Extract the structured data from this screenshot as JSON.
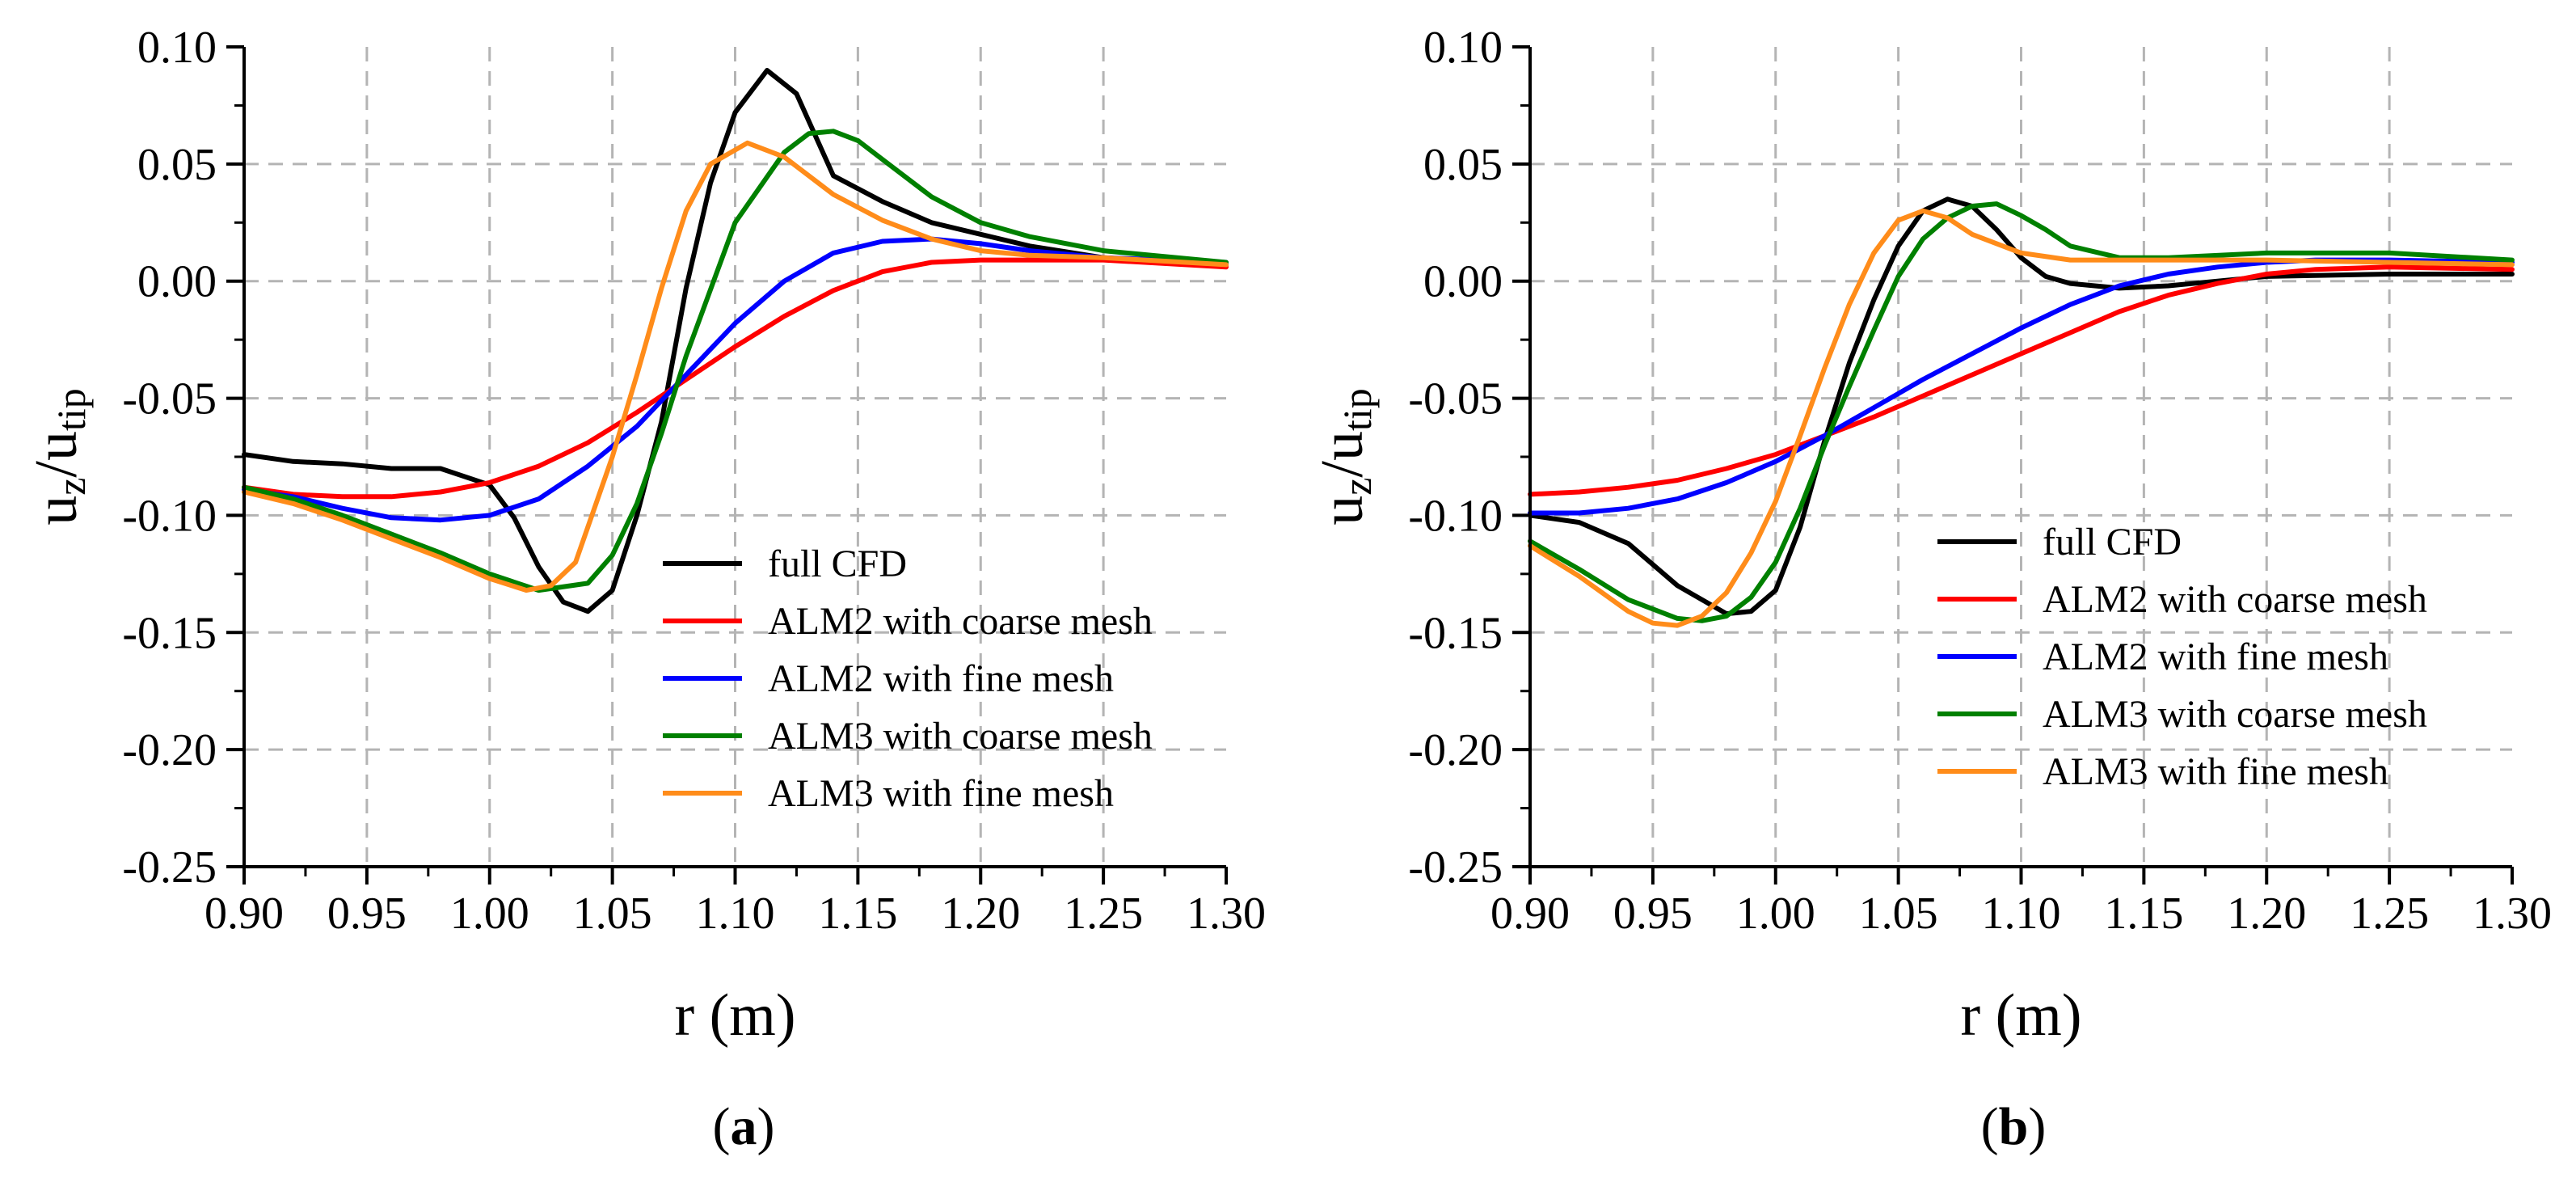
{
  "figure": {
    "panels": [
      {
        "label_open": "(",
        "label_letter": "a",
        "label_close": ")"
      },
      {
        "label_open": "(",
        "label_letter": "b",
        "label_close": ")"
      }
    ]
  },
  "chart_data": [
    {
      "type": "line",
      "xlabel": "r (m)",
      "ylabel_main": "u",
      "ylabel_sub1": "z",
      "ylabel_slash": "/u",
      "ylabel_sub2": "tip",
      "xlim": [
        0.9,
        1.3
      ],
      "ylim": [
        -0.25,
        0.1
      ],
      "xticks": [
        "0.90",
        "0.95",
        "1.00",
        "1.05",
        "1.10",
        "1.15",
        "1.20",
        "1.25",
        "1.30"
      ],
      "yticks": [
        "0.10",
        "0.05",
        "0.00",
        "-0.05",
        "-0.10",
        "-0.15",
        "-0.20",
        "-0.25"
      ],
      "grid": true,
      "legend_position": "lower-right",
      "series": [
        {
          "name": "full CFD",
          "color": "#000000",
          "x": [
            0.9,
            0.92,
            0.94,
            0.96,
            0.98,
            1.0,
            1.01,
            1.02,
            1.03,
            1.04,
            1.05,
            1.06,
            1.07,
            1.08,
            1.09,
            1.1,
            1.113,
            1.125,
            1.14,
            1.16,
            1.18,
            1.2,
            1.22,
            1.25,
            1.3
          ],
          "y": [
            -0.074,
            -0.077,
            -0.078,
            -0.08,
            -0.08,
            -0.087,
            -0.101,
            -0.122,
            -0.137,
            -0.141,
            -0.132,
            -0.1,
            -0.06,
            -0.003,
            0.042,
            0.072,
            0.09,
            0.08,
            0.045,
            0.034,
            0.025,
            0.02,
            0.015,
            0.01,
            0.007
          ]
        },
        {
          "name": "ALM2 with coarse mesh",
          "color": "#ff0000",
          "x": [
            0.9,
            0.92,
            0.94,
            0.96,
            0.98,
            1.0,
            1.02,
            1.04,
            1.06,
            1.08,
            1.1,
            1.12,
            1.14,
            1.16,
            1.18,
            1.2,
            1.22,
            1.25,
            1.3
          ],
          "y": [
            -0.088,
            -0.091,
            -0.092,
            -0.092,
            -0.09,
            -0.086,
            -0.079,
            -0.069,
            -0.056,
            -0.042,
            -0.028,
            -0.015,
            -0.004,
            0.004,
            0.008,
            0.009,
            0.009,
            0.009,
            0.006
          ]
        },
        {
          "name": "ALM2 with fine mesh",
          "color": "#0000ff",
          "x": [
            0.9,
            0.92,
            0.94,
            0.96,
            0.98,
            1.0,
            1.02,
            1.04,
            1.06,
            1.08,
            1.1,
            1.12,
            1.14,
            1.16,
            1.18,
            1.2,
            1.22,
            1.25,
            1.3
          ],
          "y": [
            -0.089,
            -0.092,
            -0.097,
            -0.101,
            -0.102,
            -0.1,
            -0.093,
            -0.079,
            -0.062,
            -0.04,
            -0.018,
            0.0,
            0.012,
            0.017,
            0.018,
            0.016,
            0.013,
            0.01,
            0.008
          ]
        },
        {
          "name": "ALM3 with coarse mesh",
          "color": "#008000",
          "x": [
            0.9,
            0.92,
            0.94,
            0.96,
            0.98,
            1.0,
            1.02,
            1.04,
            1.05,
            1.06,
            1.07,
            1.08,
            1.1,
            1.12,
            1.13,
            1.14,
            1.15,
            1.16,
            1.18,
            1.2,
            1.22,
            1.25,
            1.3
          ],
          "y": [
            -0.088,
            -0.093,
            -0.1,
            -0.108,
            -0.116,
            -0.125,
            -0.132,
            -0.129,
            -0.117,
            -0.095,
            -0.065,
            -0.032,
            0.025,
            0.055,
            0.063,
            0.064,
            0.06,
            0.052,
            0.036,
            0.025,
            0.019,
            0.013,
            0.008
          ]
        },
        {
          "name": "ALM3 with fine mesh",
          "color": "#ff8c1a",
          "x": [
            0.9,
            0.92,
            0.94,
            0.96,
            0.98,
            1.0,
            1.015,
            1.025,
            1.035,
            1.05,
            1.06,
            1.07,
            1.08,
            1.09,
            1.105,
            1.12,
            1.14,
            1.16,
            1.18,
            1.2,
            1.22,
            1.25,
            1.3
          ],
          "y": [
            -0.09,
            -0.095,
            -0.102,
            -0.11,
            -0.118,
            -0.127,
            -0.132,
            -0.13,
            -0.12,
            -0.075,
            -0.04,
            -0.003,
            0.03,
            0.05,
            0.059,
            0.053,
            0.037,
            0.026,
            0.018,
            0.013,
            0.011,
            0.01,
            0.007
          ]
        }
      ]
    },
    {
      "type": "line",
      "xlabel": "r (m)",
      "ylabel_main": "u",
      "ylabel_sub1": "z",
      "ylabel_slash": "/u",
      "ylabel_sub2": "tip",
      "xlim": [
        0.9,
        1.3
      ],
      "ylim": [
        -0.25,
        0.1
      ],
      "xticks": [
        "0.90",
        "0.95",
        "1.00",
        "1.05",
        "1.10",
        "1.15",
        "1.20",
        "1.25",
        "1.30"
      ],
      "yticks": [
        "0.10",
        "0.05",
        "0.00",
        "-0.05",
        "-0.10",
        "-0.15",
        "-0.20",
        "-0.25"
      ],
      "grid": true,
      "legend_position": "lower-right",
      "series": [
        {
          "name": "full CFD",
          "color": "#000000",
          "x": [
            0.9,
            0.92,
            0.94,
            0.96,
            0.98,
            0.99,
            1.0,
            1.01,
            1.02,
            1.03,
            1.04,
            1.05,
            1.06,
            1.07,
            1.08,
            1.09,
            1.1,
            1.11,
            1.12,
            1.14,
            1.16,
            1.18,
            1.2,
            1.25,
            1.3
          ],
          "y": [
            -0.1,
            -0.103,
            -0.112,
            -0.13,
            -0.142,
            -0.141,
            -0.132,
            -0.105,
            -0.068,
            -0.035,
            -0.008,
            0.015,
            0.03,
            0.035,
            0.032,
            0.022,
            0.01,
            0.002,
            -0.001,
            -0.003,
            -0.002,
            0.0,
            0.002,
            0.003,
            0.003
          ]
        },
        {
          "name": "ALM2 with coarse mesh",
          "color": "#ff0000",
          "x": [
            0.9,
            0.92,
            0.94,
            0.96,
            0.98,
            1.0,
            1.02,
            1.04,
            1.06,
            1.08,
            1.1,
            1.12,
            1.14,
            1.16,
            1.18,
            1.2,
            1.22,
            1.25,
            1.3
          ],
          "y": [
            -0.091,
            -0.09,
            -0.088,
            -0.085,
            -0.08,
            -0.074,
            -0.066,
            -0.058,
            -0.049,
            -0.04,
            -0.031,
            -0.022,
            -0.013,
            -0.006,
            -0.001,
            0.003,
            0.005,
            0.006,
            0.005
          ]
        },
        {
          "name": "ALM2 with fine mesh",
          "color": "#0000ff",
          "x": [
            0.9,
            0.92,
            0.94,
            0.96,
            0.98,
            1.0,
            1.02,
            1.04,
            1.06,
            1.08,
            1.1,
            1.12,
            1.14,
            1.16,
            1.18,
            1.2,
            1.22,
            1.25,
            1.3
          ],
          "y": [
            -0.099,
            -0.099,
            -0.097,
            -0.093,
            -0.086,
            -0.077,
            -0.066,
            -0.054,
            -0.042,
            -0.031,
            -0.02,
            -0.01,
            -0.002,
            0.003,
            0.006,
            0.008,
            0.009,
            0.009,
            0.008
          ]
        },
        {
          "name": "ALM3 with coarse mesh",
          "color": "#008000",
          "x": [
            0.9,
            0.92,
            0.94,
            0.96,
            0.97,
            0.98,
            0.99,
            1.0,
            1.01,
            1.02,
            1.03,
            1.04,
            1.05,
            1.06,
            1.07,
            1.08,
            1.09,
            1.1,
            1.11,
            1.12,
            1.14,
            1.16,
            1.2,
            1.25,
            1.3
          ],
          "y": [
            -0.111,
            -0.123,
            -0.136,
            -0.144,
            -0.145,
            -0.143,
            -0.135,
            -0.12,
            -0.097,
            -0.07,
            -0.045,
            -0.021,
            0.002,
            0.018,
            0.027,
            0.032,
            0.033,
            0.028,
            0.022,
            0.015,
            0.01,
            0.01,
            0.012,
            0.012,
            0.009
          ]
        },
        {
          "name": "ALM3 with fine mesh",
          "color": "#ff8c1a",
          "x": [
            0.9,
            0.92,
            0.94,
            0.95,
            0.96,
            0.97,
            0.98,
            0.99,
            1.0,
            1.01,
            1.02,
            1.03,
            1.04,
            1.05,
            1.06,
            1.07,
            1.08,
            1.1,
            1.12,
            1.15,
            1.2,
            1.25,
            1.3
          ],
          "y": [
            -0.113,
            -0.126,
            -0.141,
            -0.146,
            -0.147,
            -0.143,
            -0.133,
            -0.116,
            -0.094,
            -0.066,
            -0.037,
            -0.01,
            0.012,
            0.026,
            0.03,
            0.027,
            0.02,
            0.012,
            0.009,
            0.009,
            0.009,
            0.008,
            0.007
          ]
        }
      ]
    }
  ]
}
